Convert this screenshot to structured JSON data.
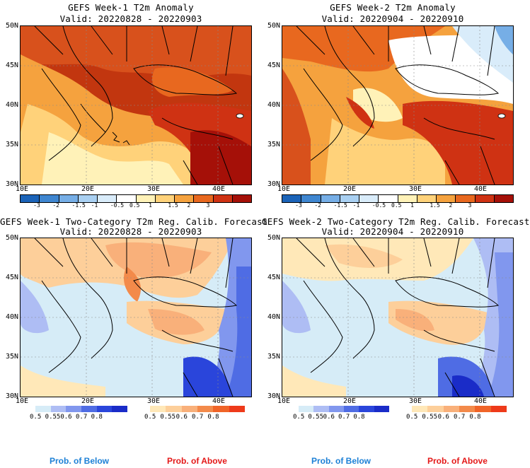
{
  "panels": [
    {
      "title": "GEFS Week-1 T2m Anomaly",
      "valid": "Valid: 20220828 - 20220903"
    },
    {
      "title": "GEFS Week-2 T2m Anomaly",
      "valid": "Valid: 20220904 - 20220910"
    },
    {
      "title": "GEFS Week-1 Two-Category T2m Reg. Calib. Forecast",
      "valid": "Valid: 20220828 - 20220903"
    },
    {
      "title": "GEFS Week-2 Two-Category T2m Reg. Calib. Forecast",
      "valid": "Valid: 20220904 - 20220910"
    }
  ],
  "lat_labels": [
    "50N",
    "45N",
    "40N",
    "35N",
    "30N"
  ],
  "lon_labels": [
    "10E",
    "20E",
    "30E",
    "40E"
  ],
  "anomaly_colorbar": {
    "labels": [
      "-3",
      "-2",
      "-1.5",
      "-1",
      "-0.5",
      "0.5",
      "1",
      "1.5",
      "2",
      "3"
    ],
    "colors": [
      "#1b63b8",
      "#3f86d0",
      "#76aee6",
      "#a9d0f2",
      "#d9ecfa",
      "#ffffff",
      "#fff2b8",
      "#ffd27a",
      "#f5a23e",
      "#e8681f",
      "#cf3213",
      "#a51008"
    ]
  },
  "prob_below_colorbar": {
    "labels": [
      "0.5",
      "0.55",
      "0.6",
      "0.7",
      "0.8"
    ],
    "colors": [
      "#d6ecf7",
      "#aebdf4",
      "#8197ee",
      "#4f6ce4",
      "#2a45db",
      "#1a2cc8"
    ]
  },
  "prob_above_colorbar": {
    "labels": [
      "0.5",
      "0.55",
      "0.6",
      "0.7",
      "0.8"
    ],
    "colors": [
      "#ffe8b8",
      "#fdcf9a",
      "#f9b07a",
      "#f38a4a",
      "#f06428",
      "#ee3a1a"
    ]
  },
  "legend": {
    "below": "Prob. of Below",
    "above": "Prob. of Above"
  },
  "colors": {
    "below_text": "#1c80d6",
    "above_text": "#e41818"
  }
}
